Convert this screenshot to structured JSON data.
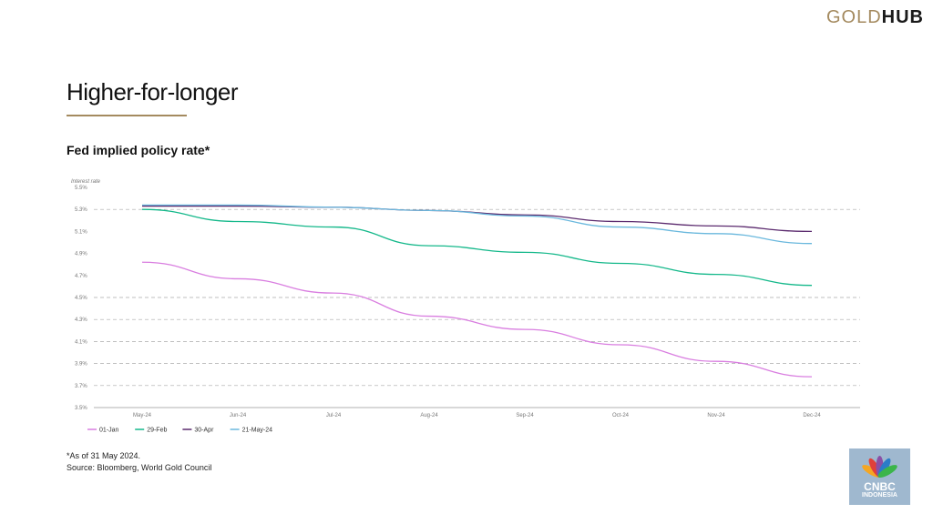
{
  "brand": {
    "gold": "GOLD",
    "hub": "HUB",
    "gold_color": "#a48a5f"
  },
  "header": {
    "title": "Higher-for-longer",
    "subtitle": "Fed implied policy rate*"
  },
  "footnotes": {
    "note": "*As of 31 May 2024.",
    "source": "Source: Bloomberg, World Gold Council"
  },
  "badge": {
    "line1": "CNBC",
    "line2": "INDONESIA"
  },
  "chart_data": {
    "type": "line",
    "ylabel": "Interest rate",
    "ylim": [
      3.5,
      5.5
    ],
    "yticks": [
      "5.5%",
      "5.3%",
      "5.1%",
      "4.9%",
      "4.7%",
      "4.5%",
      "4.3%",
      "4.1%",
      "3.9%",
      "3.7%",
      "3.5%"
    ],
    "x": [
      "May-24",
      "Jun-24",
      "Jul-24",
      "Aug-24",
      "Sep-24",
      "Oct-24",
      "Nov-24",
      "Dec-24"
    ],
    "grid": "dashed horizontal",
    "legend": "bottom-left",
    "series": [
      {
        "name": "01-Jan",
        "color": "#d97ee0",
        "values": [
          4.82,
          4.67,
          4.54,
          4.33,
          4.21,
          4.07,
          3.92,
          3.78
        ]
      },
      {
        "name": "29-Feb",
        "color": "#14b88a",
        "values": [
          5.3,
          5.19,
          5.14,
          4.97,
          4.91,
          4.81,
          4.71,
          4.61
        ]
      },
      {
        "name": "30-Apr",
        "color": "#5b2a6e",
        "values": [
          5.33,
          5.33,
          5.32,
          5.29,
          5.25,
          5.19,
          5.15,
          5.1
        ]
      },
      {
        "name": "21-May-24",
        "color": "#6ab8dd",
        "values": [
          5.34,
          5.34,
          5.32,
          5.29,
          5.24,
          5.14,
          5.08,
          4.99
        ]
      }
    ]
  }
}
